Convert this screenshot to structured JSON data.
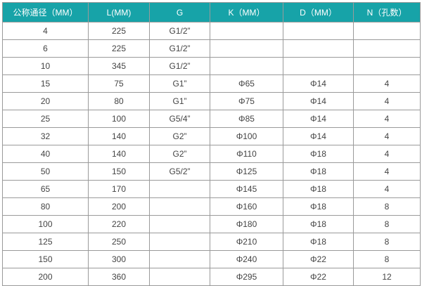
{
  "colors": {
    "header_bg": "#17a3a8",
    "header_text": "#ffffff",
    "cell_text": "#444444"
  },
  "table": {
    "headers": [
      "公称通径（MM）",
      "L(MM)",
      "G",
      "K（MM）",
      "D（MM）",
      "N（孔数）"
    ],
    "rows": [
      [
        "4",
        "225",
        "G1/2”",
        "",
        "",
        ""
      ],
      [
        "6",
        "225",
        "G1/2”",
        "",
        "",
        ""
      ],
      [
        "10",
        "345",
        "G1/2”",
        "",
        "",
        ""
      ],
      [
        "15",
        "75",
        "G1”",
        "Φ65",
        "Φ14",
        "4"
      ],
      [
        "20",
        "80",
        "G1”",
        "Φ75",
        "Φ14",
        "4"
      ],
      [
        "25",
        "100",
        "G5/4”",
        "Φ85",
        "Φ14",
        "4"
      ],
      [
        "32",
        "140",
        "G2”",
        "Φ100",
        "Φ14",
        "4"
      ],
      [
        "40",
        "140",
        "G2”",
        "Φ110",
        "Φ18",
        "4"
      ],
      [
        "50",
        "150",
        "G5/2”",
        "Φ125",
        "Φ18",
        "4"
      ],
      [
        "65",
        "170",
        "",
        "Φ145",
        "Φ18",
        "4"
      ],
      [
        "80",
        "200",
        "",
        "Φ160",
        "Φ18",
        "8"
      ],
      [
        "100",
        "220",
        "",
        "Φ180",
        "Φ18",
        "8"
      ],
      [
        "125",
        "250",
        "",
        "Φ210",
        "Φ18",
        "8"
      ],
      [
        "150",
        "300",
        "",
        "Φ240",
        "Φ22",
        "8"
      ],
      [
        "200",
        "360",
        "",
        "Φ295",
        "Φ22",
        "12"
      ]
    ]
  }
}
